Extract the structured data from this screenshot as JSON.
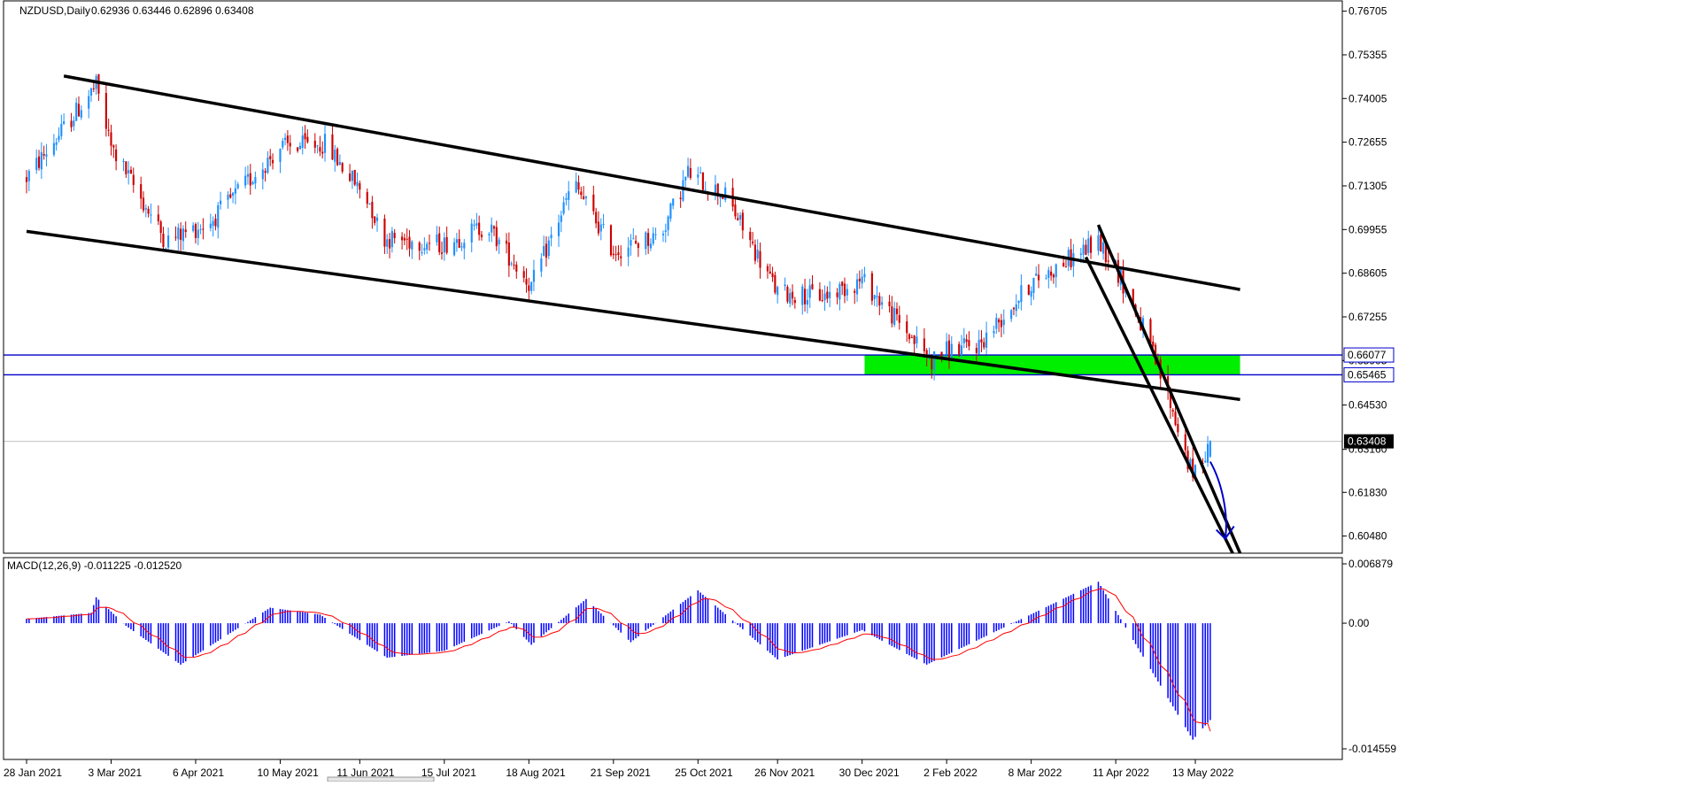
{
  "header": {
    "symbol": "NZDUSD,Daily",
    "ohlc": "0.62936 0.63446 0.62896 0.63408"
  },
  "macd_header": "MACD(12,26,9) -0.011225 -0.012520",
  "colors": {
    "bull": "#1E90FF",
    "bear": "#CC0000",
    "macd_hist": "#0000FF",
    "signal": "#FF0000",
    "support_band": "#00EE00",
    "level_line": "#0000CC",
    "trendline": "#000000",
    "current_price_line": "#C0C0C0",
    "arrow": "#0000CC"
  },
  "price_axis": {
    "ticks": [
      "0.76705",
      "0.75355",
      "0.74005",
      "0.72655",
      "0.71305",
      "0.69955",
      "0.68605",
      "0.67255",
      "0.65905",
      "0.64530",
      "0.63160",
      "0.61830",
      "0.60480"
    ],
    "markers": [
      {
        "text": "0.66077",
        "price": 0.66077,
        "style": "outlined"
      },
      {
        "text": "0.65465",
        "price": 0.65465,
        "style": "outlined"
      },
      {
        "text": "0.63408",
        "price": 0.63408,
        "style": "current"
      }
    ]
  },
  "macd_axis": {
    "ticks": [
      "0.006879",
      "0.00",
      "-0.014559"
    ]
  },
  "time_axis": {
    "labels": [
      "28 Jan 2021",
      "3 Mar 2021",
      "6 Apr 2021",
      "10 May 2021",
      "11 Jun 2021",
      "15 Jul 2021",
      "18 Aug 2021",
      "21 Sep 2021",
      "25 Oct 2021",
      "26 Nov 2021",
      "30 Dec 2021",
      "2 Feb 2022",
      "8 Mar 2022",
      "11 Apr 2022",
      "13 May 2022"
    ]
  },
  "chart_data": {
    "type": "candlestick",
    "symbol": "NZDUSD",
    "timeframe": "Daily",
    "last": {
      "open": 0.62936,
      "high": 0.63446,
      "low": 0.62896,
      "close": 0.63408
    },
    "ylim": [
      0.5995,
      0.7705
    ],
    "close_path_points": [
      {
        "date": "2021-01-28",
        "close": 0.7155
      },
      {
        "date": "2021-02-25",
        "close": 0.744
      },
      {
        "date": "2021-03-03",
        "close": 0.725
      },
      {
        "date": "2021-03-25",
        "close": 0.696
      },
      {
        "date": "2021-04-12",
        "close": 0.702
      },
      {
        "date": "2021-05-10",
        "close": 0.725
      },
      {
        "date": "2021-05-28",
        "close": 0.726
      },
      {
        "date": "2021-06-15",
        "close": 0.708
      },
      {
        "date": "2021-06-20",
        "close": 0.697
      },
      {
        "date": "2021-07-15",
        "close": 0.695
      },
      {
        "date": "2021-08-01",
        "close": 0.701
      },
      {
        "date": "2021-08-19",
        "close": 0.682
      },
      {
        "date": "2021-09-05",
        "close": 0.714
      },
      {
        "date": "2021-09-21",
        "close": 0.693
      },
      {
        "date": "2021-10-10",
        "close": 0.698
      },
      {
        "date": "2021-10-21",
        "close": 0.717
      },
      {
        "date": "2021-11-05",
        "close": 0.71
      },
      {
        "date": "2021-11-26",
        "close": 0.68
      },
      {
        "date": "2021-12-15",
        "close": 0.679
      },
      {
        "date": "2021-12-30",
        "close": 0.684
      },
      {
        "date": "2022-01-27",
        "close": 0.659
      },
      {
        "date": "2022-02-02",
        "close": 0.662
      },
      {
        "date": "2022-02-15",
        "close": 0.664
      },
      {
        "date": "2022-03-08",
        "close": 0.683
      },
      {
        "date": "2022-04-04",
        "close": 0.696
      },
      {
        "date": "2022-04-11",
        "close": 0.688
      },
      {
        "date": "2022-04-22",
        "close": 0.669
      },
      {
        "date": "2022-05-02",
        "close": 0.648
      },
      {
        "date": "2022-05-12",
        "close": 0.623
      },
      {
        "date": "2022-05-19",
        "close": 0.6341
      }
    ],
    "trendlines": [
      {
        "name": "channel-top",
        "from": {
          "date": "2021-02-12",
          "price": 0.747
        },
        "to": {
          "date": "2022-05-31",
          "price": 0.681
        }
      },
      {
        "name": "channel-bottom",
        "from": {
          "date": "2021-01-28",
          "price": 0.699
        },
        "to": {
          "date": "2022-05-31",
          "price": 0.647
        }
      },
      {
        "name": "down-channel-upper",
        "from": {
          "date": "2022-04-04",
          "price": 0.701
        },
        "to": {
          "date": "2022-05-31",
          "price": 0.5995
        }
      },
      {
        "name": "down-channel-lower",
        "from": {
          "date": "2022-03-30",
          "price": 0.691
        },
        "to": {
          "date": "2022-05-28",
          "price": 0.5995
        }
      }
    ],
    "horizontal_levels": [
      0.66077,
      0.65465
    ],
    "support_zone": {
      "from_date": "2021-12-31",
      "to_date": "2022-05-31",
      "price_top": 0.66077,
      "price_bottom": 0.65465
    },
    "current_price": 0.63408,
    "macd": {
      "params": "12,26,9",
      "main": -0.011225,
      "signal": -0.01252,
      "ylim": [
        -0.014559,
        0.006879
      ],
      "path_points": [
        {
          "date": "2021-01-28",
          "value": 0.0005
        },
        {
          "date": "2021-02-23",
          "value": 0.0012
        },
        {
          "date": "2021-02-25",
          "value": 0.003
        },
        {
          "date": "2021-03-09",
          "value": -0.0003
        },
        {
          "date": "2021-03-31",
          "value": -0.0048
        },
        {
          "date": "2021-05-06",
          "value": 0.0018
        },
        {
          "date": "2021-05-26",
          "value": 0.001
        },
        {
          "date": "2021-06-22",
          "value": -0.004
        },
        {
          "date": "2021-07-15",
          "value": -0.0032
        },
        {
          "date": "2021-08-10",
          "value": 0.0002
        },
        {
          "date": "2021-08-19",
          "value": -0.0025
        },
        {
          "date": "2021-09-10",
          "value": 0.0028
        },
        {
          "date": "2021-09-28",
          "value": -0.0022
        },
        {
          "date": "2021-10-25",
          "value": 0.0038
        },
        {
          "date": "2021-11-26",
          "value": -0.0042
        },
        {
          "date": "2021-12-30",
          "value": -0.0008
        },
        {
          "date": "2022-01-25",
          "value": -0.0048
        },
        {
          "date": "2022-02-25",
          "value": -0.0005
        },
        {
          "date": "2022-04-04",
          "value": 0.0048
        },
        {
          "date": "2022-05-12",
          "value": -0.0135
        },
        {
          "date": "2022-05-19",
          "value": -0.0112
        }
      ]
    }
  }
}
